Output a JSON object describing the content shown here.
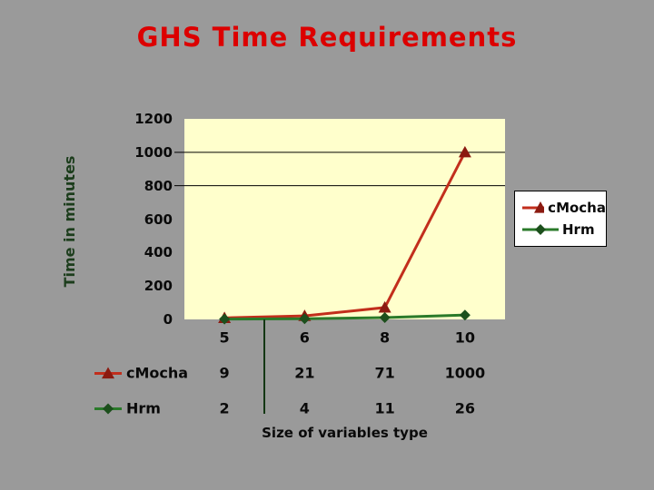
{
  "slide": {
    "background_color": "#9A9A9A",
    "title_color": "#DC0000"
  },
  "chart_data": {
    "type": "line",
    "title": "GHS Time Requirements",
    "xlabel": "Size of variables type",
    "ylabel": "Time in minutes",
    "categories": [
      "5",
      "6",
      "8",
      "10"
    ],
    "series": [
      {
        "name": "cMocha",
        "marker": "triangle",
        "line_color": "#C22E1C",
        "marker_color": "#8B1A10",
        "values": [
          9,
          21,
          71,
          1000
        ]
      },
      {
        "name": "Hrm",
        "marker": "diamond",
        "line_color": "#2A7A2A",
        "marker_color": "#1C4F1C",
        "values": [
          2,
          4,
          11,
          26
        ]
      }
    ],
    "ylim": [
      0,
      1200
    ],
    "yticks": [
      1200,
      1000,
      800,
      600,
      400,
      200,
      0
    ],
    "gridline_values": [
      1000,
      800
    ],
    "grid_color": "#000000",
    "plot_bg": "#FFFFCC",
    "legend_position": "right",
    "legend_bg": "#FFFFFF",
    "data_table": true
  }
}
